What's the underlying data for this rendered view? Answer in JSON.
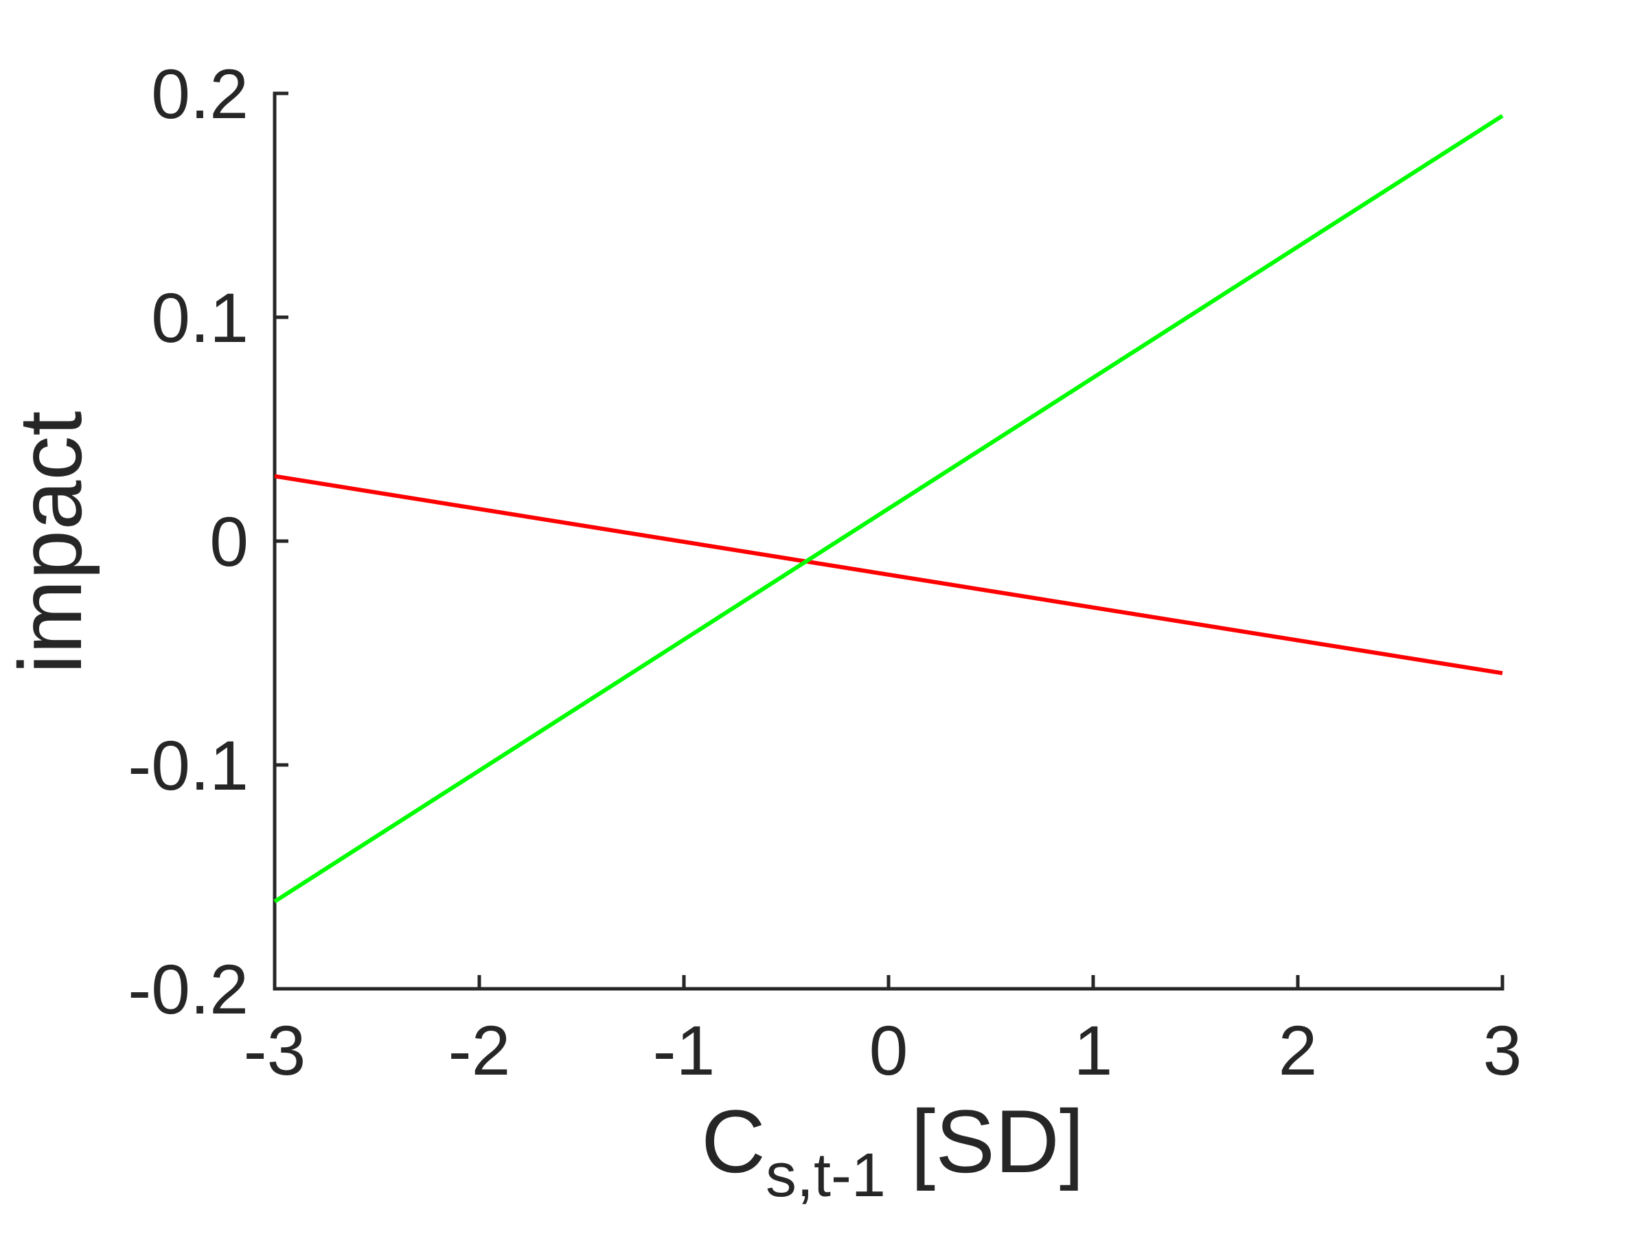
{
  "chart_data": {
    "type": "line",
    "xlabel": {
      "main": "C",
      "subscript": "s,t-1",
      "suffix": " [SD]"
    },
    "ylabel": "impact",
    "xlim": [
      -3,
      3
    ],
    "ylim": [
      -0.2,
      0.2
    ],
    "x_ticks": [
      -3,
      -2,
      -1,
      0,
      1,
      2,
      3
    ],
    "x_tick_labels": [
      "-3",
      "-2",
      "-1",
      "0",
      "1",
      "2",
      "3"
    ],
    "y_ticks": [
      -0.2,
      -0.1,
      0,
      0.1,
      0.2
    ],
    "y_tick_labels": [
      "-0.2",
      "-0.1",
      "0",
      "0.1",
      "0.2"
    ],
    "grid": false,
    "legend": "none",
    "series": [
      {
        "color": "#ff0000",
        "x": [
          -3,
          3
        ],
        "y": [
          0.029,
          -0.059
        ]
      },
      {
        "color": "#00ff00",
        "x": [
          -3,
          3
        ],
        "y": [
          -0.161,
          0.19
        ]
      }
    ]
  }
}
